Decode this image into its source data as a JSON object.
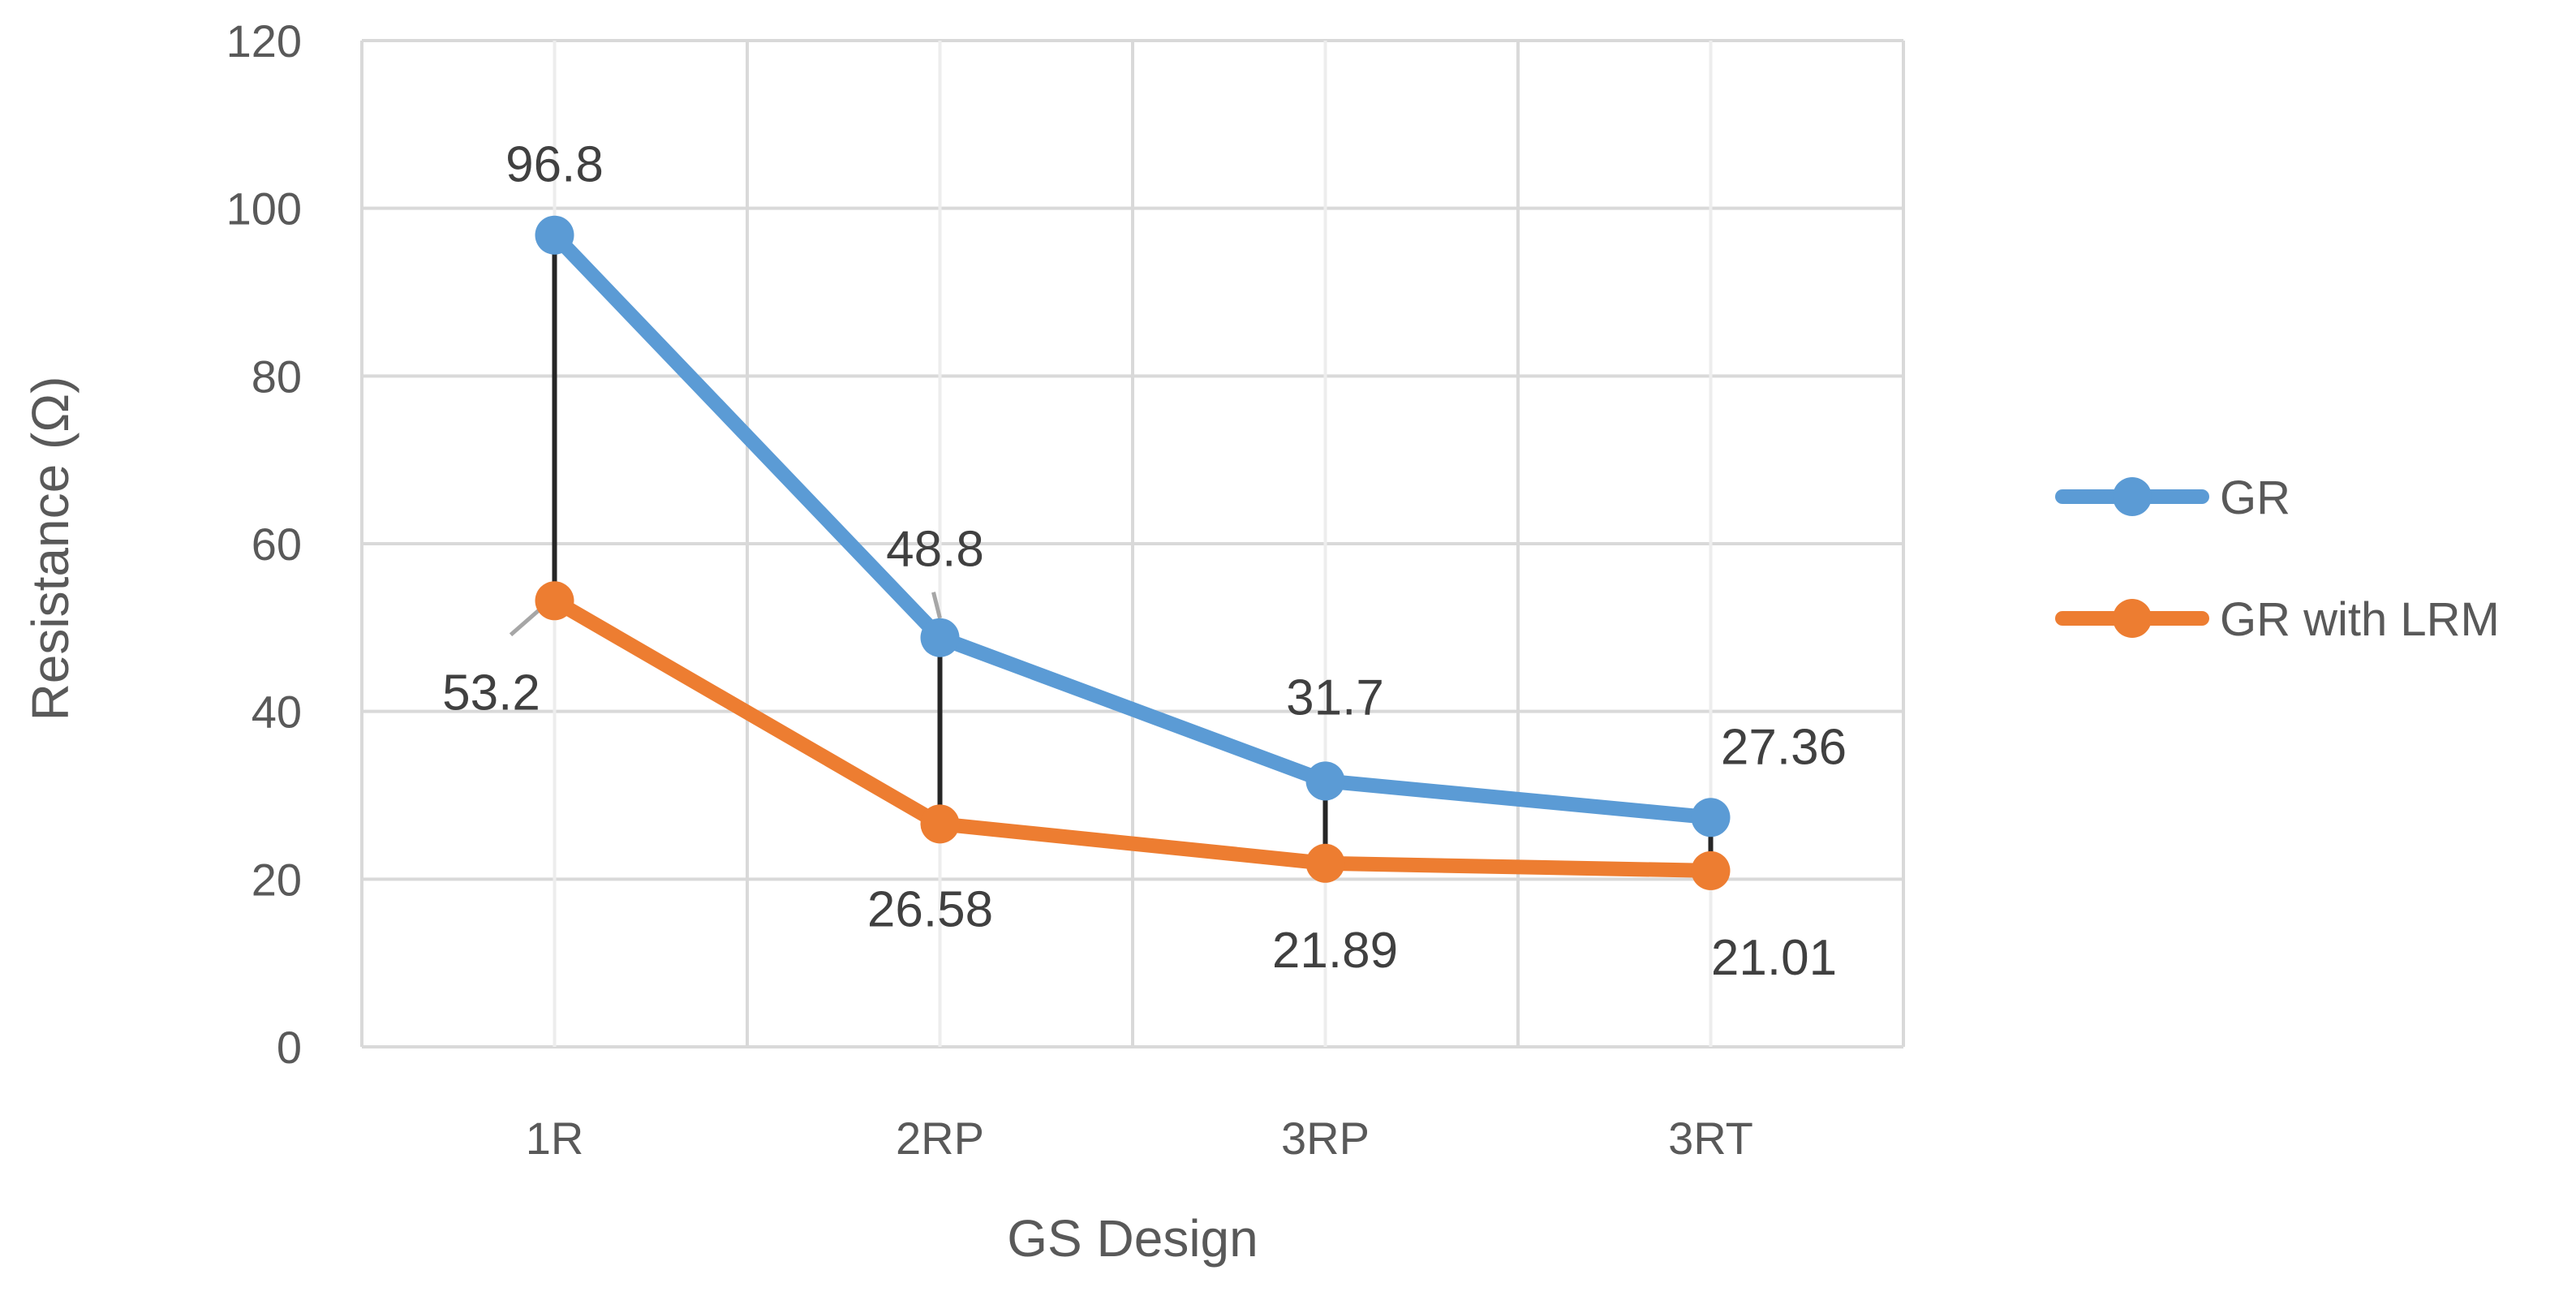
{
  "chart_data": {
    "type": "line",
    "title": "",
    "xlabel": "GS Design",
    "ylabel": "Resistance (Ω)",
    "categories": [
      "1R",
      "2RP",
      "3RP",
      "3RT"
    ],
    "ylim": [
      0,
      120
    ],
    "yticks": [
      0,
      20,
      40,
      60,
      80,
      100,
      120
    ],
    "grid": true,
    "legend_position": "right",
    "series": [
      {
        "name": "GR",
        "color": "#5B9BD5",
        "values": [
          96.8,
          48.8,
          31.7,
          27.36
        ],
        "labels": [
          "96.8",
          "48.8",
          "31.7",
          "27.36"
        ]
      },
      {
        "name": "GR with LRM",
        "color": "#ED7D31",
        "values": [
          53.2,
          26.58,
          21.89,
          21.01
        ],
        "labels": [
          "53.2",
          "26.58",
          "21.89",
          "21.01"
        ]
      }
    ],
    "drop_lines": true,
    "drop_line_color": "#262626"
  }
}
